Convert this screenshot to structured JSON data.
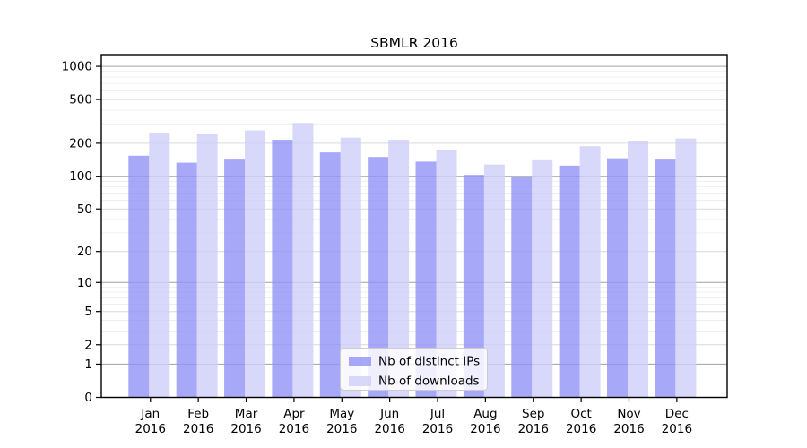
{
  "chart_data": {
    "type": "bar",
    "title": "SBMLR 2016",
    "categories": [
      "Jan 2016",
      "Feb 2016",
      "Mar 2016",
      "Apr 2016",
      "May 2016",
      "Jun 2016",
      "Jul 2016",
      "Aug 2016",
      "Sep 2016",
      "Oct 2016",
      "Nov 2016",
      "Dec 2016"
    ],
    "series": [
      {
        "name": "Nb of distinct IPs",
        "color": "#9292f8",
        "values": [
          154,
          133,
          142,
          215,
          165,
          150,
          136,
          103,
          99,
          125,
          146,
          142
        ]
      },
      {
        "name": "Nb of downloads",
        "color": "#cecef9",
        "values": [
          250,
          242,
          262,
          306,
          225,
          215,
          175,
          128,
          140,
          188,
          211,
          221
        ]
      }
    ],
    "yscale": "log10(1+y)",
    "ylim": [
      0,
      1277
    ],
    "yticks": [
      0,
      1,
      2,
      5,
      10,
      20,
      50,
      100,
      200,
      500,
      1000
    ],
    "grid": true,
    "legend_position": "inside-bottom-center",
    "style": {
      "bar_opacity": 0.8,
      "grid_major_strong": "#a0a0a0",
      "grid_major": "#d9d9d9",
      "grid_minor": "#ececec",
      "axis_color": "#000000",
      "legend_border": "#cccccc",
      "legend_bg": "#ffffff"
    }
  }
}
